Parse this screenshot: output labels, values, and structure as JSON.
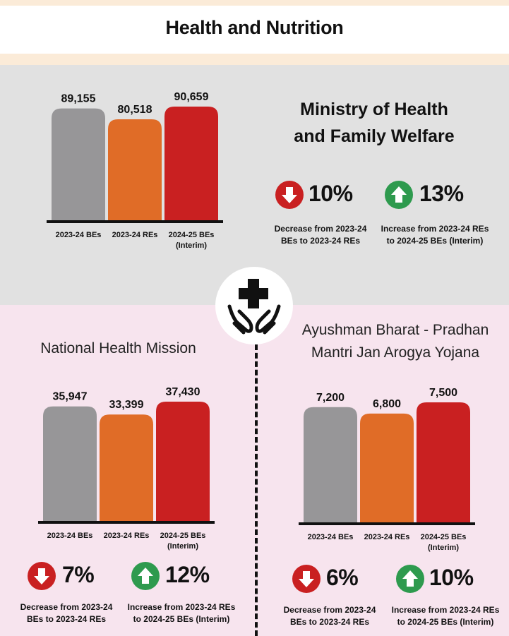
{
  "header": {
    "title": "Health and Nutrition"
  },
  "colors": {
    "gray_bar": "#979698",
    "orange_bar": "#e06c27",
    "red_bar": "#c92021",
    "down_arrow": "#c92021",
    "up_arrow": "#2e9a4e",
    "gray_section": "#e1e1e1",
    "pink_section": "#f7e4ee",
    "header_band": "#fbebd8"
  },
  "icon": {
    "name": "health-hands-cross-icon"
  },
  "ministry": {
    "heading_line1": "Ministry of Health",
    "heading_line2": "and Family Welfare",
    "stats": [
      {
        "direction": "down",
        "icon": "down-arrow-icon",
        "percent": "10%",
        "desc_line1": "Decrease from 2023-24",
        "desc_line2": "BEs to 2023-24 REs"
      },
      {
        "direction": "up",
        "icon": "up-arrow-icon",
        "percent": "13%",
        "desc_line1": "Increase from 2023-24 REs",
        "desc_line2": "to 2024-25 BEs (Interim)"
      }
    ]
  },
  "nhm": {
    "heading": "National Health Mission",
    "stats": [
      {
        "direction": "down",
        "icon": "down-arrow-icon",
        "percent": "7%",
        "desc_line1": "Decrease from 2023-24",
        "desc_line2": "BEs to 2023-24 REs"
      },
      {
        "direction": "up",
        "icon": "up-arrow-icon",
        "percent": "12%",
        "desc_line1": "Increase from 2023-24 REs",
        "desc_line2": "to 2024-25 BEs (Interim)"
      }
    ]
  },
  "pmjay": {
    "heading_line1": "Ayushman Bharat - Pradhan",
    "heading_line2": "Mantri Jan Arogya Yojana",
    "stats": [
      {
        "direction": "down",
        "icon": "down-arrow-icon",
        "percent": "6%",
        "desc_line1": "Decrease from 2023-24",
        "desc_line2": "BEs to 2023-24 REs"
      },
      {
        "direction": "up",
        "icon": "up-arrow-icon",
        "percent": "10%",
        "desc_line1": "Increase from 2023-24 REs",
        "desc_line2": "to 2024-25 BEs (Interim)"
      }
    ]
  },
  "chart_data": [
    {
      "id": "ministry",
      "type": "bar",
      "title": "Ministry of Health and Family Welfare",
      "categories": [
        [
          "2023-24 BEs"
        ],
        [
          "2023-24 REs"
        ],
        [
          "2024-25 BEs",
          "(Interim)"
        ]
      ],
      "values": [
        89155,
        80518,
        90659
      ],
      "value_labels": [
        "89,155",
        "80,518",
        "90,659"
      ],
      "bar_colors": [
        "#979698",
        "#e06c27",
        "#c92021"
      ],
      "ylim": [
        0,
        90659
      ],
      "grid": false,
      "legend": "none"
    },
    {
      "id": "nhm",
      "type": "bar",
      "title": "National Health Mission",
      "categories": [
        [
          "2023-24 BEs"
        ],
        [
          "2023-24 REs"
        ],
        [
          "2024-25 BEs",
          "(Interim)"
        ]
      ],
      "values": [
        35947,
        33399,
        37430
      ],
      "value_labels": [
        "35,947",
        "33,399",
        "37,430"
      ],
      "bar_colors": [
        "#979698",
        "#e06c27",
        "#c92021"
      ],
      "ylim": [
        0,
        37430
      ],
      "grid": false,
      "legend": "none"
    },
    {
      "id": "pmjay",
      "type": "bar",
      "title": "Ayushman Bharat - Pradhan Mantri Jan Arogya Yojana",
      "categories": [
        [
          "2023-24 BEs"
        ],
        [
          "2023-24 REs"
        ],
        [
          "2024-25 BEs",
          "(Interim)"
        ]
      ],
      "values": [
        7200,
        6800,
        7500
      ],
      "value_labels": [
        "7,200",
        "6,800",
        "7,500"
      ],
      "bar_colors": [
        "#979698",
        "#e06c27",
        "#c92021"
      ],
      "ylim": [
        0,
        7500
      ],
      "grid": false,
      "legend": "none"
    }
  ]
}
